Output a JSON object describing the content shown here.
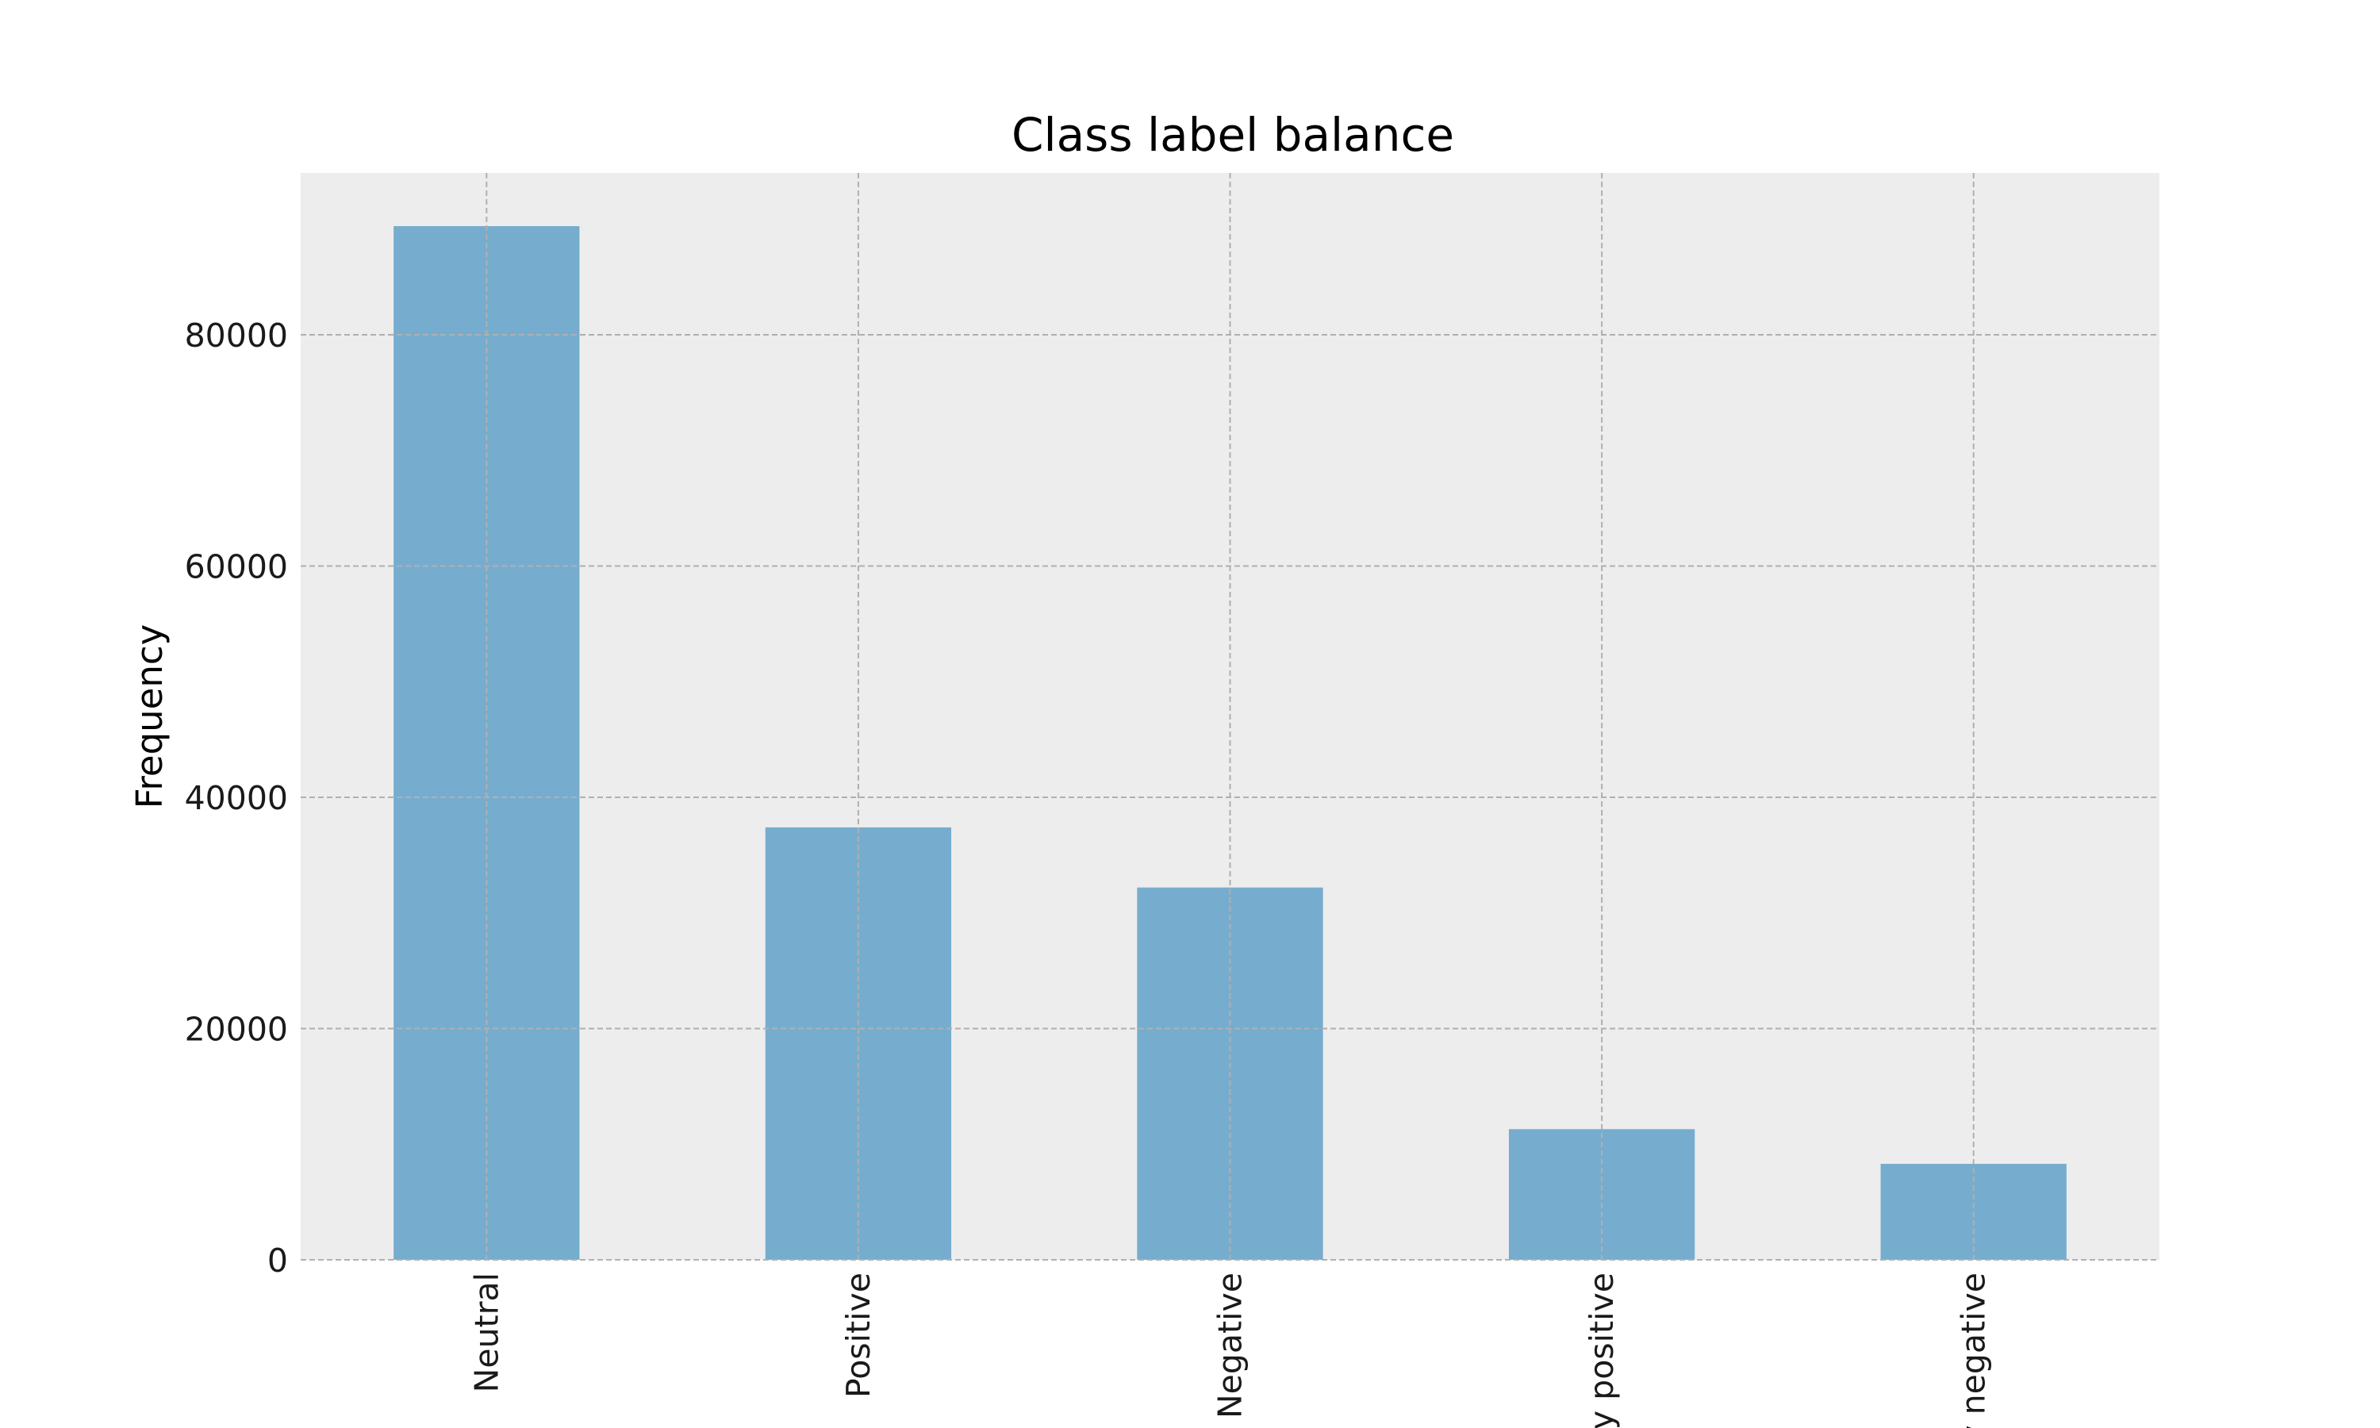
{
  "chart_data": {
    "type": "bar",
    "title": "Class label balance",
    "xlabel": "",
    "ylabel": "Frequency",
    "categories": [
      "Neutral",
      "Positive",
      "Negative",
      "Very positive",
      "Very negative"
    ],
    "values": [
      89400,
      37400,
      32200,
      11300,
      8300
    ],
    "ylim": [
      0,
      94000
    ],
    "yticks": [
      0,
      20000,
      40000,
      60000,
      80000
    ],
    "ytick_labels": [
      "0",
      "20000",
      "40000",
      "60000",
      "80000"
    ],
    "grid": true,
    "colors": {
      "bar": "#76ADCE",
      "plot_background": "#EDEDED",
      "grid": "#B0B0B0"
    }
  }
}
